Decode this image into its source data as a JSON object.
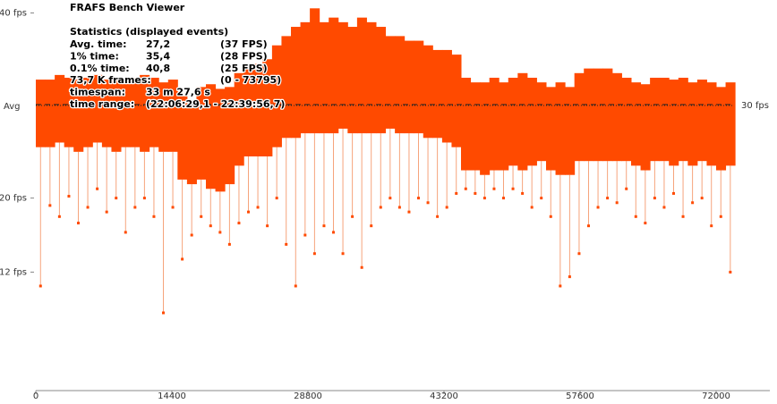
{
  "chart_data": {
    "type": "range",
    "title": "FRAFS Bench Viewer",
    "stats": {
      "heading": "Statistics (displayed events)",
      "rows": [
        {
          "label": "Avg. time:",
          "value": "27,2",
          "fps": "(37 FPS)"
        },
        {
          "label": "1% time:",
          "value": "35,4",
          "fps": "(28 FPS)"
        },
        {
          "label": "0.1% time:",
          "value": "40,8",
          "fps": "(25 FPS)"
        },
        {
          "label": "73,7 K frames:",
          "fps": "(0 - 73795)"
        },
        {
          "label": "timespan:",
          "value": "33 m 27,6 s"
        },
        {
          "label": "time range:",
          "value": "(22:06:29,1 - 22:39:56,7)"
        }
      ]
    },
    "color": "#ff4a00",
    "spike_color": "#f6a47c",
    "xlim": [
      0,
      77684
    ],
    "xticks": [
      0,
      14400,
      28800,
      43200,
      57600,
      72000
    ],
    "ylim": [
      -0.8,
      41.4
    ],
    "yticks": [
      {
        "value": 40,
        "label": "40 fps"
      },
      {
        "value": 20,
        "label": "20 fps"
      },
      {
        "value": 12,
        "label": "12 fps"
      }
    ],
    "avg_line": {
      "label": "Avg",
      "value": 30.1
    },
    "threshold": {
      "label": "30 fps",
      "value": 30
    },
    "x": [
      0,
      1000,
      2000,
      3000,
      4000,
      5000,
      6000,
      7000,
      8000,
      9000,
      10000,
      11000,
      12000,
      13000,
      14000,
      15000,
      16000,
      17000,
      18000,
      19000,
      20000,
      21000,
      22000,
      23000,
      24000,
      25000,
      26000,
      27000,
      28000,
      29000,
      30000,
      31000,
      32000,
      33000,
      34000,
      35000,
      36000,
      37000,
      38000,
      39000,
      40000,
      41000,
      42000,
      43000,
      44000,
      45000,
      46000,
      47000,
      48000,
      49000,
      50000,
      51000,
      52000,
      53000,
      54000,
      55000,
      56000,
      57000,
      58000,
      59000,
      60000,
      61000,
      62000,
      63000,
      64000,
      65000,
      66000,
      67000,
      68000,
      69000,
      70000,
      71000,
      72000,
      73000
    ],
    "upper": [
      32.8,
      32.8,
      33.3,
      33,
      32.8,
      33,
      33.3,
      32.8,
      33,
      32.8,
      33,
      33.3,
      33,
      32.5,
      32.8,
      31,
      30,
      32,
      32.3,
      31.8,
      32,
      33.5,
      34.2,
      34.5,
      35,
      36.5,
      37.5,
      38.5,
      39,
      40.5,
      39,
      39.5,
      39,
      38.5,
      39.5,
      39,
      38.5,
      37.5,
      37.5,
      37,
      37,
      36.5,
      36,
      36,
      35.5,
      33,
      32.5,
      32.5,
      33,
      32.5,
      33,
      33.5,
      33,
      32.5,
      32,
      32.5,
      32,
      33.5,
      34,
      34,
      34,
      33.5,
      33,
      32.5,
      32.3,
      33,
      33,
      32.8,
      33,
      32.5,
      32.8,
      32.5,
      32,
      32.5
    ],
    "lower": [
      25.5,
      25.5,
      26,
      25.5,
      25,
      25.5,
      26,
      25.5,
      25,
      25.5,
      25.5,
      25,
      25.5,
      25,
      25,
      22,
      21.5,
      22,
      21,
      20.7,
      21.5,
      23.5,
      24.5,
      24.5,
      24.5,
      25.5,
      26.5,
      26.5,
      27,
      27,
      27,
      27,
      27.5,
      27,
      27,
      27,
      27,
      27.5,
      27,
      27,
      27,
      26.5,
      26.5,
      26,
      25.5,
      23,
      23,
      22.5,
      23,
      23,
      23.5,
      23,
      23.5,
      24,
      23,
      22.5,
      22.5,
      24,
      24,
      24,
      24,
      24,
      24,
      23.5,
      23,
      24,
      24,
      23.5,
      24,
      23.5,
      24,
      23.5,
      23,
      23.5
    ],
    "spike": [
      10.5,
      19.2,
      18,
      20.2,
      17.3,
      19,
      21,
      18.5,
      20,
      16.3,
      19,
      20,
      18,
      7.6,
      19,
      13.4,
      16,
      18,
      17,
      16.3,
      15,
      17.3,
      18.5,
      19,
      17,
      20,
      15,
      10.5,
      16,
      14,
      17,
      16.3,
      14,
      18,
      12.5,
      17,
      19,
      20,
      19,
      18.5,
      20,
      19.5,
      18,
      19,
      20.5,
      21,
      20.5,
      20,
      21,
      20,
      21,
      20.5,
      19,
      20,
      18,
      10.5,
      11.5,
      14,
      17,
      19,
      20,
      19.5,
      21,
      18,
      17.3,
      20,
      19,
      20.5,
      18,
      19.5,
      20,
      17,
      18,
      12
    ]
  }
}
